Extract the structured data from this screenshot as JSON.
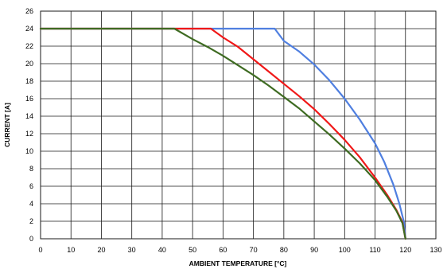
{
  "chart_data": {
    "type": "line",
    "title": "",
    "xlabel": "AMBIENT TEMPERATURE [°C]",
    "ylabel": "CURRENT [A]",
    "xlim": [
      0,
      130
    ],
    "ylim": [
      0,
      26
    ],
    "x_ticks": [
      0,
      10,
      20,
      30,
      40,
      50,
      60,
      70,
      80,
      90,
      100,
      110,
      120,
      130
    ],
    "y_ticks": [
      0,
      2,
      4,
      6,
      8,
      10,
      12,
      14,
      16,
      18,
      20,
      22,
      24,
      26
    ],
    "grid": true,
    "legend": "none",
    "series": [
      {
        "color": "#4f7fe0",
        "points": [
          [
            0,
            24
          ],
          [
            77,
            24
          ],
          [
            80,
            22.6
          ],
          [
            85,
            21.4
          ],
          [
            90,
            19.9
          ],
          [
            95,
            18.1
          ],
          [
            100,
            16.0
          ],
          [
            105,
            13.6
          ],
          [
            110,
            10.9
          ],
          [
            113,
            8.8
          ],
          [
            116,
            6.2
          ],
          [
            118,
            4.0
          ],
          [
            119.5,
            1.9
          ],
          [
            120,
            0
          ]
        ]
      },
      {
        "color": "#f01818",
        "points": [
          [
            0,
            24
          ],
          [
            56,
            24
          ],
          [
            60,
            23.0
          ],
          [
            65,
            21.9
          ],
          [
            70,
            20.5
          ],
          [
            75,
            19.1
          ],
          [
            80,
            17.7
          ],
          [
            85,
            16.3
          ],
          [
            90,
            14.8
          ],
          [
            95,
            13.1
          ],
          [
            100,
            11.3
          ],
          [
            105,
            9.3
          ],
          [
            110,
            7.0
          ],
          [
            114,
            5.0
          ],
          [
            117,
            3.3
          ],
          [
            119,
            1.9
          ],
          [
            120,
            0
          ]
        ]
      },
      {
        "color": "#3e6b22",
        "points": [
          [
            0,
            24
          ],
          [
            44,
            24
          ],
          [
            50,
            22.8
          ],
          [
            55,
            21.9
          ],
          [
            60,
            20.9
          ],
          [
            65,
            19.8
          ],
          [
            70,
            18.7
          ],
          [
            75,
            17.5
          ],
          [
            80,
            16.2
          ],
          [
            85,
            14.9
          ],
          [
            90,
            13.4
          ],
          [
            95,
            11.9
          ],
          [
            100,
            10.3
          ],
          [
            105,
            8.6
          ],
          [
            110,
            6.7
          ],
          [
            114,
            4.8
          ],
          [
            117,
            3.2
          ],
          [
            119,
            1.8
          ],
          [
            120,
            0
          ]
        ]
      }
    ]
  }
}
